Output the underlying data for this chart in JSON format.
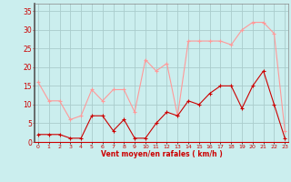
{
  "x": [
    0,
    1,
    2,
    3,
    4,
    5,
    6,
    7,
    8,
    9,
    10,
    11,
    12,
    13,
    14,
    15,
    16,
    17,
    18,
    19,
    20,
    21,
    22,
    23
  ],
  "rafales": [
    16,
    11,
    11,
    6,
    7,
    14,
    11,
    14,
    14,
    8,
    22,
    19,
    21,
    7,
    27,
    27,
    27,
    27,
    26,
    30,
    32,
    32,
    29,
    3
  ],
  "moyen": [
    2,
    2,
    2,
    1,
    1,
    7,
    7,
    3,
    6,
    1,
    1,
    5,
    8,
    7,
    11,
    10,
    13,
    15,
    15,
    9,
    15,
    19,
    10,
    1
  ],
  "bg_color": "#cbeeee",
  "grid_color": "#aacccc",
  "line_color_rafales": "#ff9999",
  "line_color_moyen": "#cc0000",
  "xlabel": "Vent moyen/en rafales ( km/h )",
  "ylabel_ticks": [
    0,
    5,
    10,
    15,
    20,
    25,
    30,
    35
  ],
  "ylim": [
    0,
    37
  ],
  "xlim": [
    -0.3,
    23.3
  ],
  "label_color": "#cc0000",
  "spine_color": "#888888"
}
